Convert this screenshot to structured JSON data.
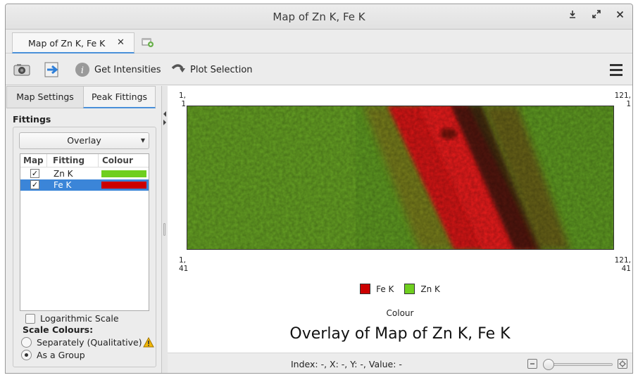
{
  "window": {
    "title": "Map of Zn K, Fe K",
    "controls": [
      "download-icon",
      "expand-icon",
      "close-icon"
    ]
  },
  "tabs": {
    "document_tab": "Map of Zn K, Fe K",
    "close_glyph": "✕"
  },
  "toolbar": {
    "get_intensities": "Get Intensities",
    "plot_selection": "Plot Selection"
  },
  "left_panel": {
    "tabs": [
      "Map Settings",
      "Peak Fittings"
    ],
    "active_tab": "Peak Fittings",
    "section_title": "Fittings",
    "mode": "Overlay",
    "columns": [
      "Map",
      "Fitting",
      "Colour"
    ],
    "fittings": [
      {
        "checked": true,
        "name": "Zn K",
        "colour": "#6fcf1f",
        "selected": false
      },
      {
        "checked": true,
        "name": "Fe K",
        "colour": "#cc0000",
        "selected": true
      }
    ],
    "log_scale_label": "Logarithmic Scale",
    "log_scale_checked": false,
    "scale_colours_label": "Scale Colours:",
    "scale_options": [
      "Separately (Qualitative)",
      "As a Group"
    ],
    "scale_selected": "As a Group"
  },
  "map": {
    "corners": {
      "top_left": [
        "1,",
        "1"
      ],
      "top_right": [
        "121,",
        "1"
      ],
      "bottom_left": [
        "1,",
        "41"
      ],
      "bottom_right": [
        "121,",
        "41"
      ]
    },
    "legend": [
      {
        "label": "Fe K",
        "color": "#cc0000"
      },
      {
        "label": "Zn K",
        "color": "#6fcf1f"
      }
    ],
    "colour_label": "Colour",
    "plot_title": "Overlay of Map of Zn K, Fe K"
  },
  "status": {
    "text": "Index: -, X: -, Y: -, Value: -"
  }
}
